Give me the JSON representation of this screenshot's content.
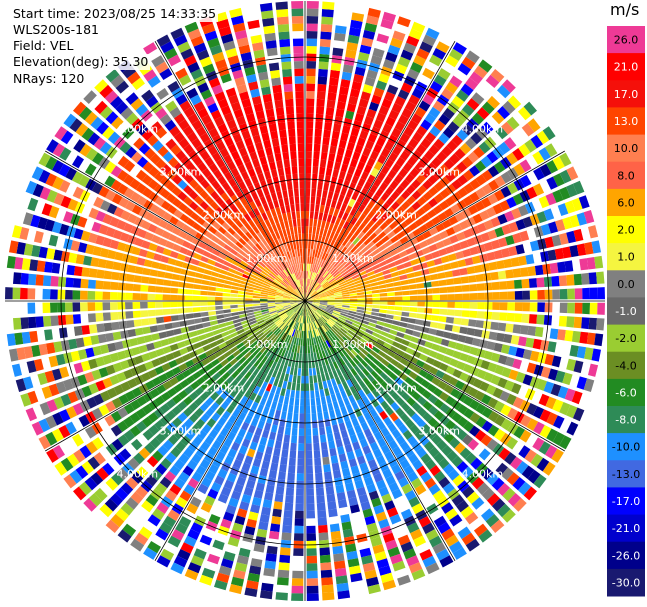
{
  "info": {
    "start_time": "Start time: 2023/08/25 14:33:35",
    "instrument": "WLS200s-181",
    "field": "Field: VEL",
    "elevation": "Elevation(deg): 35.30",
    "nrays": "NRays: 120"
  },
  "colorbar": {
    "units": "m/s",
    "ticks": [
      "26.0",
      "21.0",
      "17.0",
      "13.0",
      "10.0",
      "8.0",
      "6.0",
      "2.0",
      "1.0",
      "0.0",
      "-1.0",
      "-2.0",
      "-4.0",
      "-6.0",
      "-8.0",
      "-10.0",
      "-13.0",
      "-17.0",
      "-21.0",
      "-26.0",
      "-30.0"
    ],
    "colors": [
      "#ee3a96",
      "#ff0000",
      "#f5100a",
      "#ff4500",
      "#ff7f50",
      "#ff6347",
      "#ffa500",
      "#ffff00",
      "#f5f540",
      "#808080",
      "#696969",
      "#9acd32",
      "#6b8e23",
      "#228b22",
      "#2e8b57",
      "#1e90ff",
      "#4169e1",
      "#0000ff",
      "#0000cd",
      "#00008b",
      "#191970"
    ]
  },
  "chart_data": {
    "type": "heatmap",
    "subtype": "polar-ppi",
    "nrays": 120,
    "range_ring_labels": [
      "1.00km",
      "2.00km",
      "3.00km",
      "4.00km"
    ],
    "range_rings_km": [
      1,
      2,
      3,
      4
    ],
    "max_range_km": 5,
    "field": "VEL",
    "units": "m/s",
    "vmin": -30.0,
    "vmax": 26.0,
    "grid": true,
    "spokes_deg": [
      0,
      30,
      60,
      90,
      120,
      150,
      180,
      210,
      240,
      270,
      300,
      330
    ],
    "velocity_pattern": {
      "description_by_azimuth_band": [
        {
          "sector": "north",
          "approx_velocity_m_s": 13.0
        },
        {
          "sector": "north-mid",
          "approx_velocity_m_s": 8.0
        },
        {
          "sector": "east-west-upper",
          "approx_velocity_m_s": 2.0
        },
        {
          "sector": "east-west",
          "approx_velocity_m_s": 0.0
        },
        {
          "sector": "east-west-lower",
          "approx_velocity_m_s": -2.0
        },
        {
          "sector": "south-mid",
          "approx_velocity_m_s": -6.0
        },
        {
          "sector": "south",
          "approx_velocity_m_s": -10.0
        }
      ],
      "noisy_outer_range_km": 3.6
    }
  }
}
